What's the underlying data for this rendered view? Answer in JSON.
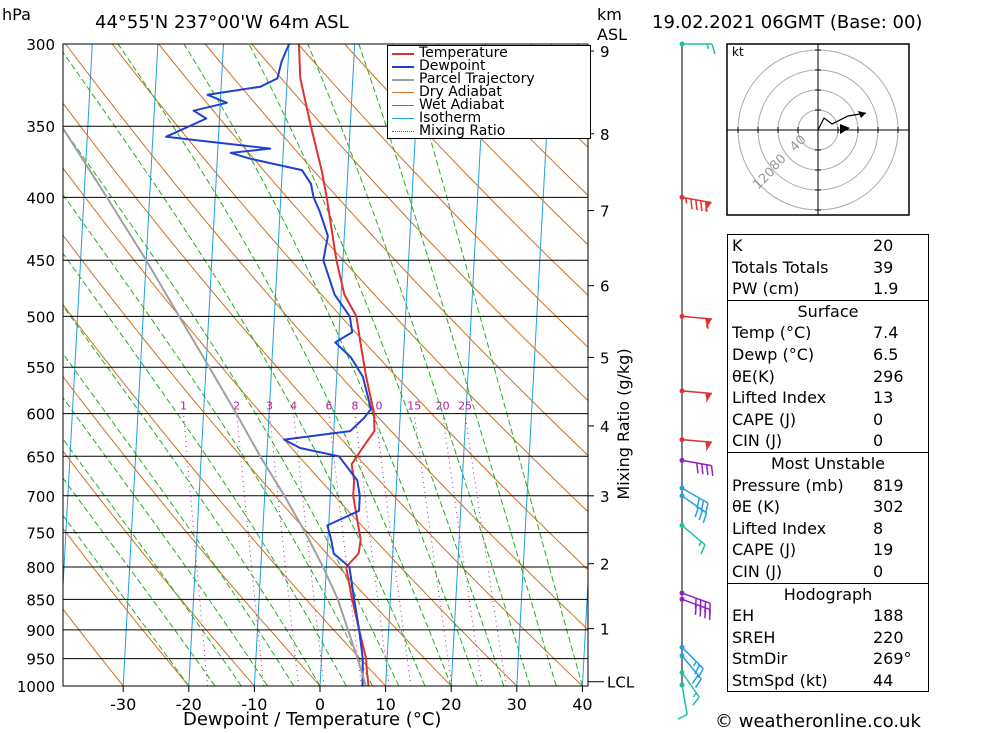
{
  "header": {
    "hpa_unit": "hPa",
    "location": "44°55'N  237°00'W  64m  ASL",
    "km_unit": "km",
    "km_unit2": "ASL",
    "datetime": "19.02.2021  06GMT  (Base: 00)"
  },
  "footer": {
    "credit": "© weatheronline.co.uk"
  },
  "colors": {
    "temperature": "#e03030",
    "dewpoint": "#2040d0",
    "parcel": "#a0a0a0",
    "dry_adiabat": "#d07020",
    "wet_adiabat": "#20b020",
    "isotherm": "#20a0e0",
    "mixing_ratio": "#b02090"
  },
  "chart_data": {
    "type": "line",
    "title": "44°55'N  237°00'W  64m  ASL",
    "xlabel": "Dewpoint / Temperature (°C)",
    "ylabel": "hPa",
    "right_axis_label": "Mixing Ratio (g/kg)",
    "xlim": [
      -40,
      40
    ],
    "ylim": [
      1000,
      300
    ],
    "grid": true,
    "legend_placement": "top-right",
    "x_ticks": [
      "-30",
      "-20",
      "-10",
      "0",
      "10",
      "20",
      "30",
      "40"
    ],
    "pressure_ticks": [
      "300",
      "350",
      "400",
      "450",
      "500",
      "550",
      "600",
      "650",
      "700",
      "750",
      "800",
      "850",
      "900",
      "950",
      "1000"
    ],
    "km_ticks": [
      {
        "label": "9",
        "p": 304
      },
      {
        "label": "8",
        "p": 355
      },
      {
        "label": "7",
        "p": 410
      },
      {
        "label": "6",
        "p": 472
      },
      {
        "label": "5",
        "p": 540
      },
      {
        "label": "4",
        "p": 614
      },
      {
        "label": "3",
        "p": 700
      },
      {
        "label": "2",
        "p": 795
      },
      {
        "label": "1",
        "p": 898
      }
    ],
    "lcl_label": "LCL",
    "lcl_p": 992,
    "mixing_ratio_labels": [
      "1",
      "2",
      "3",
      "4",
      "6",
      "8",
      "10",
      "15",
      "20",
      "25"
    ],
    "legend": [
      "Temperature",
      "Dewpoint",
      "Parcel Trajectory",
      "Dry Adiabat",
      "Wet Adiabat",
      "Isotherm",
      "Mixing Ratio"
    ],
    "series": [
      {
        "name": "Temperature",
        "points": [
          [
            1000,
            7.4
          ],
          [
            970,
            7.0
          ],
          [
            950,
            6.8
          ],
          [
            900,
            5.5
          ],
          [
            850,
            4.2
          ],
          [
            800,
            3.0
          ],
          [
            780,
            4.8
          ],
          [
            760,
            5.0
          ],
          [
            740,
            4.5
          ],
          [
            700,
            3.5
          ],
          [
            680,
            3.5
          ],
          [
            660,
            3.0
          ],
          [
            640,
            4.5
          ],
          [
            620,
            6.2
          ],
          [
            600,
            6.0
          ],
          [
            560,
            4.5
          ],
          [
            530,
            3.5
          ],
          [
            500,
            2.5
          ],
          [
            480,
            0.5
          ],
          [
            450,
            -1.0
          ],
          [
            400,
            -3.0
          ],
          [
            380,
            -4.0
          ],
          [
            350,
            -6.0
          ],
          [
            320,
            -8.0
          ],
          [
            300,
            -8.5
          ]
        ]
      },
      {
        "name": "Dewpoint",
        "points": [
          [
            1000,
            6.5
          ],
          [
            950,
            6.3
          ],
          [
            900,
            5.5
          ],
          [
            850,
            4.5
          ],
          [
            800,
            3.5
          ],
          [
            780,
            1.0
          ],
          [
            760,
            0.5
          ],
          [
            740,
            -0.2
          ],
          [
            720,
            4.5
          ],
          [
            700,
            4.5
          ],
          [
            680,
            4.0
          ],
          [
            650,
            1.0
          ],
          [
            640,
            -5.0
          ],
          [
            630,
            -7.5
          ],
          [
            620,
            2.5
          ],
          [
            605,
            4.5
          ],
          [
            595,
            5.5
          ],
          [
            560,
            4.0
          ],
          [
            540,
            2.0
          ],
          [
            525,
            -0.5
          ],
          [
            515,
            2.0
          ],
          [
            500,
            1.5
          ],
          [
            480,
            -1.0
          ],
          [
            450,
            -3.0
          ],
          [
            430,
            -2.5
          ],
          [
            410,
            -4.0
          ],
          [
            400,
            -5.0
          ],
          [
            390,
            -5.5
          ],
          [
            380,
            -7.0
          ],
          [
            372,
            -15.0
          ],
          [
            368,
            -18.0
          ],
          [
            365,
            -12.0
          ],
          [
            357,
            -28.0
          ],
          [
            345,
            -22.0
          ],
          [
            340,
            -24.0
          ],
          [
            335,
            -19.0
          ],
          [
            330,
            -22.0
          ],
          [
            325,
            -14.0
          ],
          [
            320,
            -11.5
          ],
          [
            310,
            -11.0
          ],
          [
            300,
            -10.0
          ]
        ]
      },
      {
        "name": "Parcel Trajectory",
        "points": [
          [
            1000,
            7.0
          ],
          [
            950,
            5.5
          ],
          [
            900,
            3.8
          ],
          [
            850,
            2.0
          ],
          [
            800,
            -0.5
          ],
          [
            750,
            -3.5
          ],
          [
            700,
            -7.0
          ],
          [
            650,
            -11.0
          ],
          [
            600,
            -15.0
          ],
          [
            550,
            -19.5
          ],
          [
            500,
            -24.5
          ],
          [
            450,
            -30.0
          ],
          [
            400,
            -36.5
          ],
          [
            350,
            -44.0
          ],
          [
            310,
            -50.5
          ]
        ]
      }
    ],
    "wind_barbs": [
      {
        "p": 300,
        "dir": 270,
        "kt": 15
      },
      {
        "p": 400,
        "dir": 260,
        "kt": 95
      },
      {
        "p": 500,
        "dir": 265,
        "kt": 60
      },
      {
        "p": 575,
        "dir": 265,
        "kt": 55
      },
      {
        "p": 630,
        "dir": 265,
        "kt": 55
      },
      {
        "p": 655,
        "dir": 260,
        "kt": 40
      },
      {
        "p": 690,
        "dir": 240,
        "kt": 30
      },
      {
        "p": 700,
        "dir": 235,
        "kt": 30
      },
      {
        "p": 740,
        "dir": 230,
        "kt": 15
      },
      {
        "p": 840,
        "dir": 250,
        "kt": 40
      },
      {
        "p": 850,
        "dir": 250,
        "kt": 40
      },
      {
        "p": 930,
        "dir": 225,
        "kt": 25
      },
      {
        "p": 945,
        "dir": 220,
        "kt": 20
      },
      {
        "p": 975,
        "dir": 215,
        "kt": 15
      },
      {
        "p": 998,
        "dir": 190,
        "kt": 10
      }
    ]
  },
  "hodograph": {
    "unit": "kt",
    "ring_labels": [
      "40",
      "80",
      "120"
    ]
  },
  "indices": {
    "top": [
      {
        "k": "K",
        "v": "20"
      },
      {
        "k": "Totals Totals",
        "v": "39"
      },
      {
        "k": "PW (cm)",
        "v": "1.9"
      }
    ],
    "surface_title": "Surface",
    "surface": [
      {
        "k": "Temp (°C)",
        "v": "7.4"
      },
      {
        "k": "Dewp (°C)",
        "v": "6.5"
      },
      {
        "k": "θE(K)",
        "v": "296"
      },
      {
        "k": "Lifted Index",
        "v": "13"
      },
      {
        "k": "CAPE (J)",
        "v": "0"
      },
      {
        "k": "CIN (J)",
        "v": "0"
      }
    ],
    "mu_title": "Most Unstable",
    "mu": [
      {
        "k": "Pressure (mb)",
        "v": "819"
      },
      {
        "k": "θE (K)",
        "v": "302"
      },
      {
        "k": "Lifted Index",
        "v": "8"
      },
      {
        "k": "CAPE (J)",
        "v": "19"
      },
      {
        "k": "CIN (J)",
        "v": "0"
      }
    ],
    "hodo_title": "Hodograph",
    "hodo": [
      {
        "k": "EH",
        "v": "188"
      },
      {
        "k": "SREH",
        "v": "220"
      },
      {
        "k": "StmDir",
        "v": "269°"
      },
      {
        "k": "StmSpd (kt)",
        "v": "44"
      }
    ]
  }
}
